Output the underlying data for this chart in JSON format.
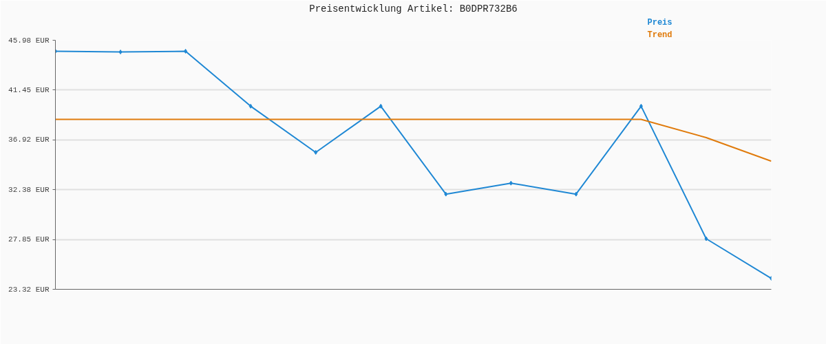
{
  "chart_data": {
    "type": "line",
    "title": "Preisentwicklung Artikel: B0DPR732B6",
    "categories": [
      null,
      null,
      null,
      null,
      null,
      null,
      null,
      null,
      null,
      null,
      null,
      null
    ],
    "series": [
      {
        "name": "Preis",
        "color": "#1f88d4",
        "marker": "diamond",
        "values": [
          44.98,
          44.91,
          44.98,
          39.98,
          35.78,
          39.98,
          31.98,
          32.98,
          31.98,
          39.98,
          27.92,
          24.32
        ]
      },
      {
        "name": "Trend",
        "color": "#e07b0c",
        "marker": "none",
        "values": [
          38.78,
          38.78,
          38.78,
          38.78,
          38.78,
          38.78,
          38.78,
          38.78,
          38.78,
          38.78,
          37.12,
          34.98
        ]
      }
    ],
    "ylim": [
      23.32,
      45.98
    ],
    "yticks": [
      {
        "value": 45.98,
        "label": "45.98 EUR"
      },
      {
        "value": 41.45,
        "label": "41.45 EUR"
      },
      {
        "value": 36.92,
        "label": "36.92 EUR"
      },
      {
        "value": 32.38,
        "label": "32.38 EUR"
      },
      {
        "value": 27.85,
        "label": "27.85 EUR"
      },
      {
        "value": 23.32,
        "label": "23.32 EUR"
      }
    ],
    "grid": "y",
    "tick_labels": "y",
    "line_style": "solid"
  }
}
